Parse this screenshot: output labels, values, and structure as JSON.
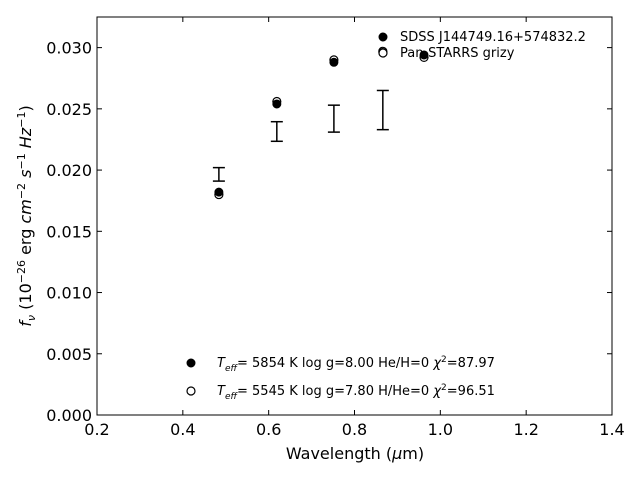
{
  "chart_data": {
    "type": "scatter",
    "xlabel": "Wavelength (μm)",
    "ylabel": "f_ν (10^-26 erg cm^-2 s^-1 Hz^-1)",
    "xlim": [
      0.2,
      1.4
    ],
    "ylim": [
      0.0,
      0.0325
    ],
    "x_ticks": [
      0.2,
      0.4,
      0.6,
      0.8,
      1.0,
      1.2,
      1.4
    ],
    "y_ticks": [
      0.0,
      0.005,
      0.01,
      0.015,
      0.02,
      0.025,
      0.03
    ],
    "x_tick_labels": [
      "0.2",
      "0.4",
      "0.6",
      "0.8",
      "1.0",
      "1.2",
      "1.4"
    ],
    "y_tick_labels": [
      "0.000",
      "0.005",
      "0.010",
      "0.015",
      "0.020",
      "0.025",
      "0.030"
    ],
    "grid": false,
    "legend": {
      "placement": "top-right",
      "entries": [
        {
          "label": "SDSS J144749.16+574832.2",
          "marker": "filled-circle"
        },
        {
          "label": "Pan-STARRS grizy",
          "marker": "open-circle"
        }
      ]
    },
    "observations": {
      "name": "Pan-STARRS grizy",
      "x": [
        0.484,
        0.619,
        0.752,
        0.866,
        0.962
      ],
      "y": [
        0.01965,
        0.02315,
        0.0242,
        0.0249,
        null
      ],
      "yerr": [
        0.00055,
        0.0008,
        0.0011,
        0.0016,
        null
      ]
    },
    "series": [
      {
        "name": "SDSS J144749.16+574832.2",
        "marker": "filled-circle",
        "x": [
          0.484,
          0.619,
          0.752,
          0.866,
          0.962
        ],
        "y": [
          0.0182,
          0.0254,
          0.0288,
          0.0296,
          0.0294
        ]
      },
      {
        "name": "Pan-STARRS grizy",
        "marker": "open-circle",
        "x": [
          0.484,
          0.619,
          0.752,
          0.866,
          0.962
        ],
        "y": [
          0.018,
          0.0256,
          0.029,
          0.0297,
          0.0292
        ]
      }
    ],
    "fit_annotations": [
      {
        "marker": "filled-circle",
        "teff": "5854 K",
        "logg": "log g=8.00",
        "composition": "He/H=0",
        "chi2": "=87.97"
      },
      {
        "marker": "open-circle",
        "teff": "5545 K",
        "logg": "log g=7.80",
        "composition": "H/He=0",
        "chi2": "=96.51"
      }
    ]
  }
}
